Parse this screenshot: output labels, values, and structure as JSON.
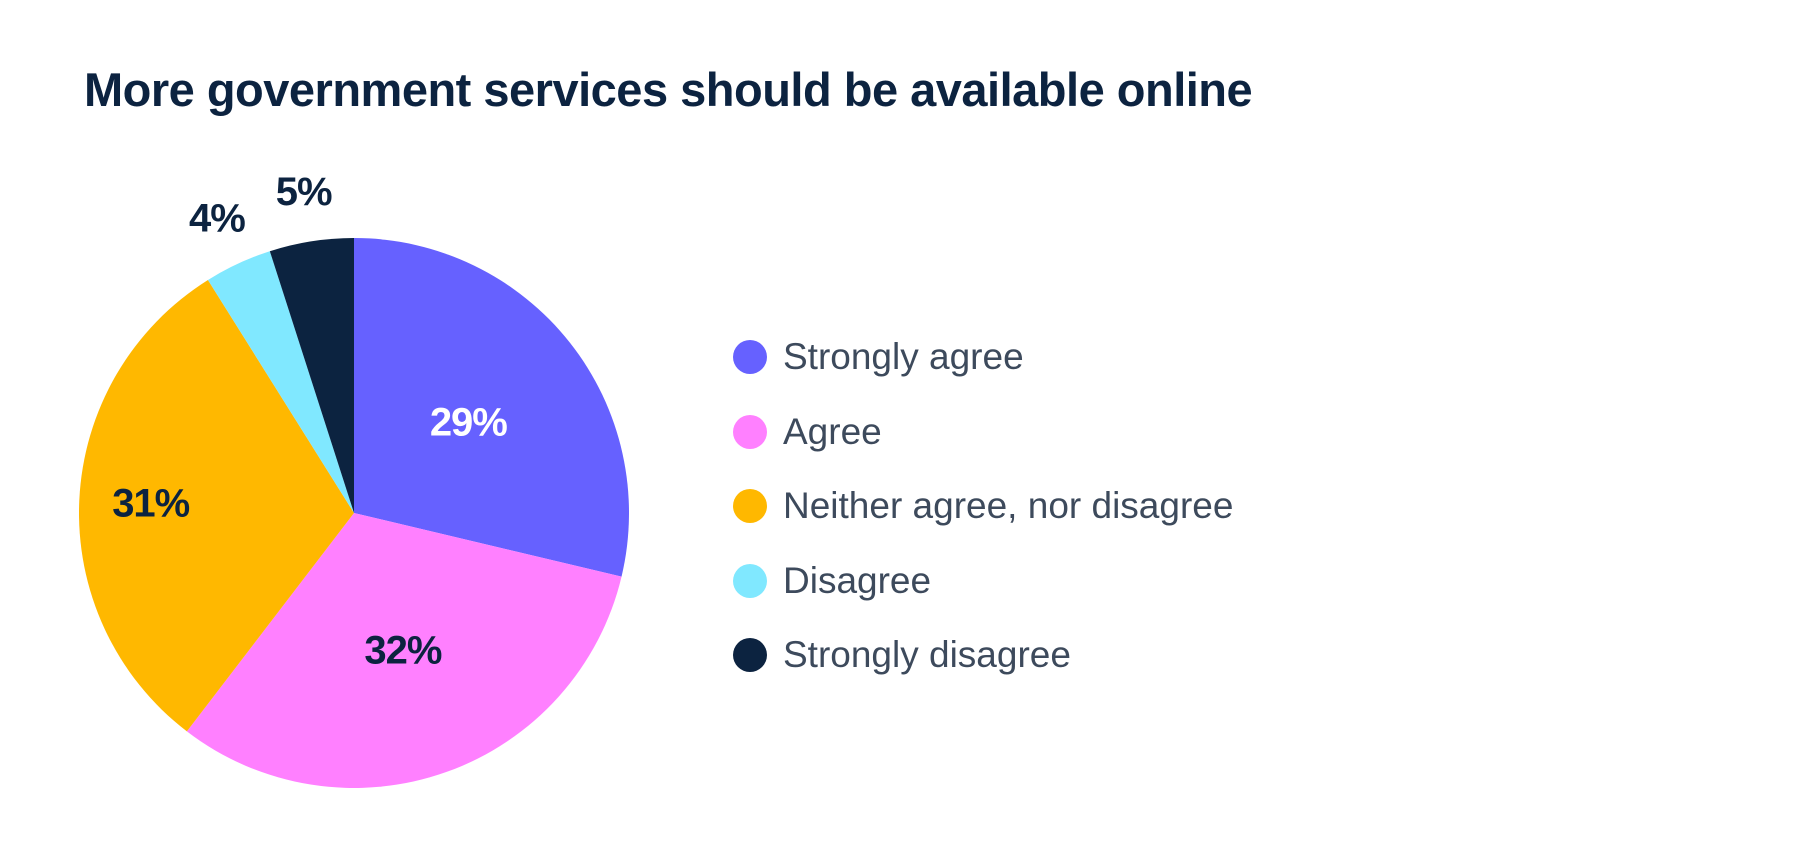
{
  "chart_data": {
    "type": "pie",
    "title": "More government services should be available online",
    "categories": [
      "Strongly agree",
      "Agree",
      "Neither agree, nor disagree",
      "Disagree",
      "Strongly disagree"
    ],
    "values": [
      29,
      32,
      31,
      4,
      5
    ],
    "labels": [
      "29%",
      "32%",
      "31%",
      "4%",
      "5%"
    ],
    "colors": [
      "#6661ff",
      "#ff80ff",
      "#ffb800",
      "#80e8ff",
      "#0c2340"
    ],
    "label_colors": [
      "#ffffff",
      "#0c2340",
      "#0c2340",
      "#0c2340",
      "#0c2340"
    ],
    "start": "12 o'clock",
    "direction": "clockwise",
    "legend_position": "right"
  }
}
